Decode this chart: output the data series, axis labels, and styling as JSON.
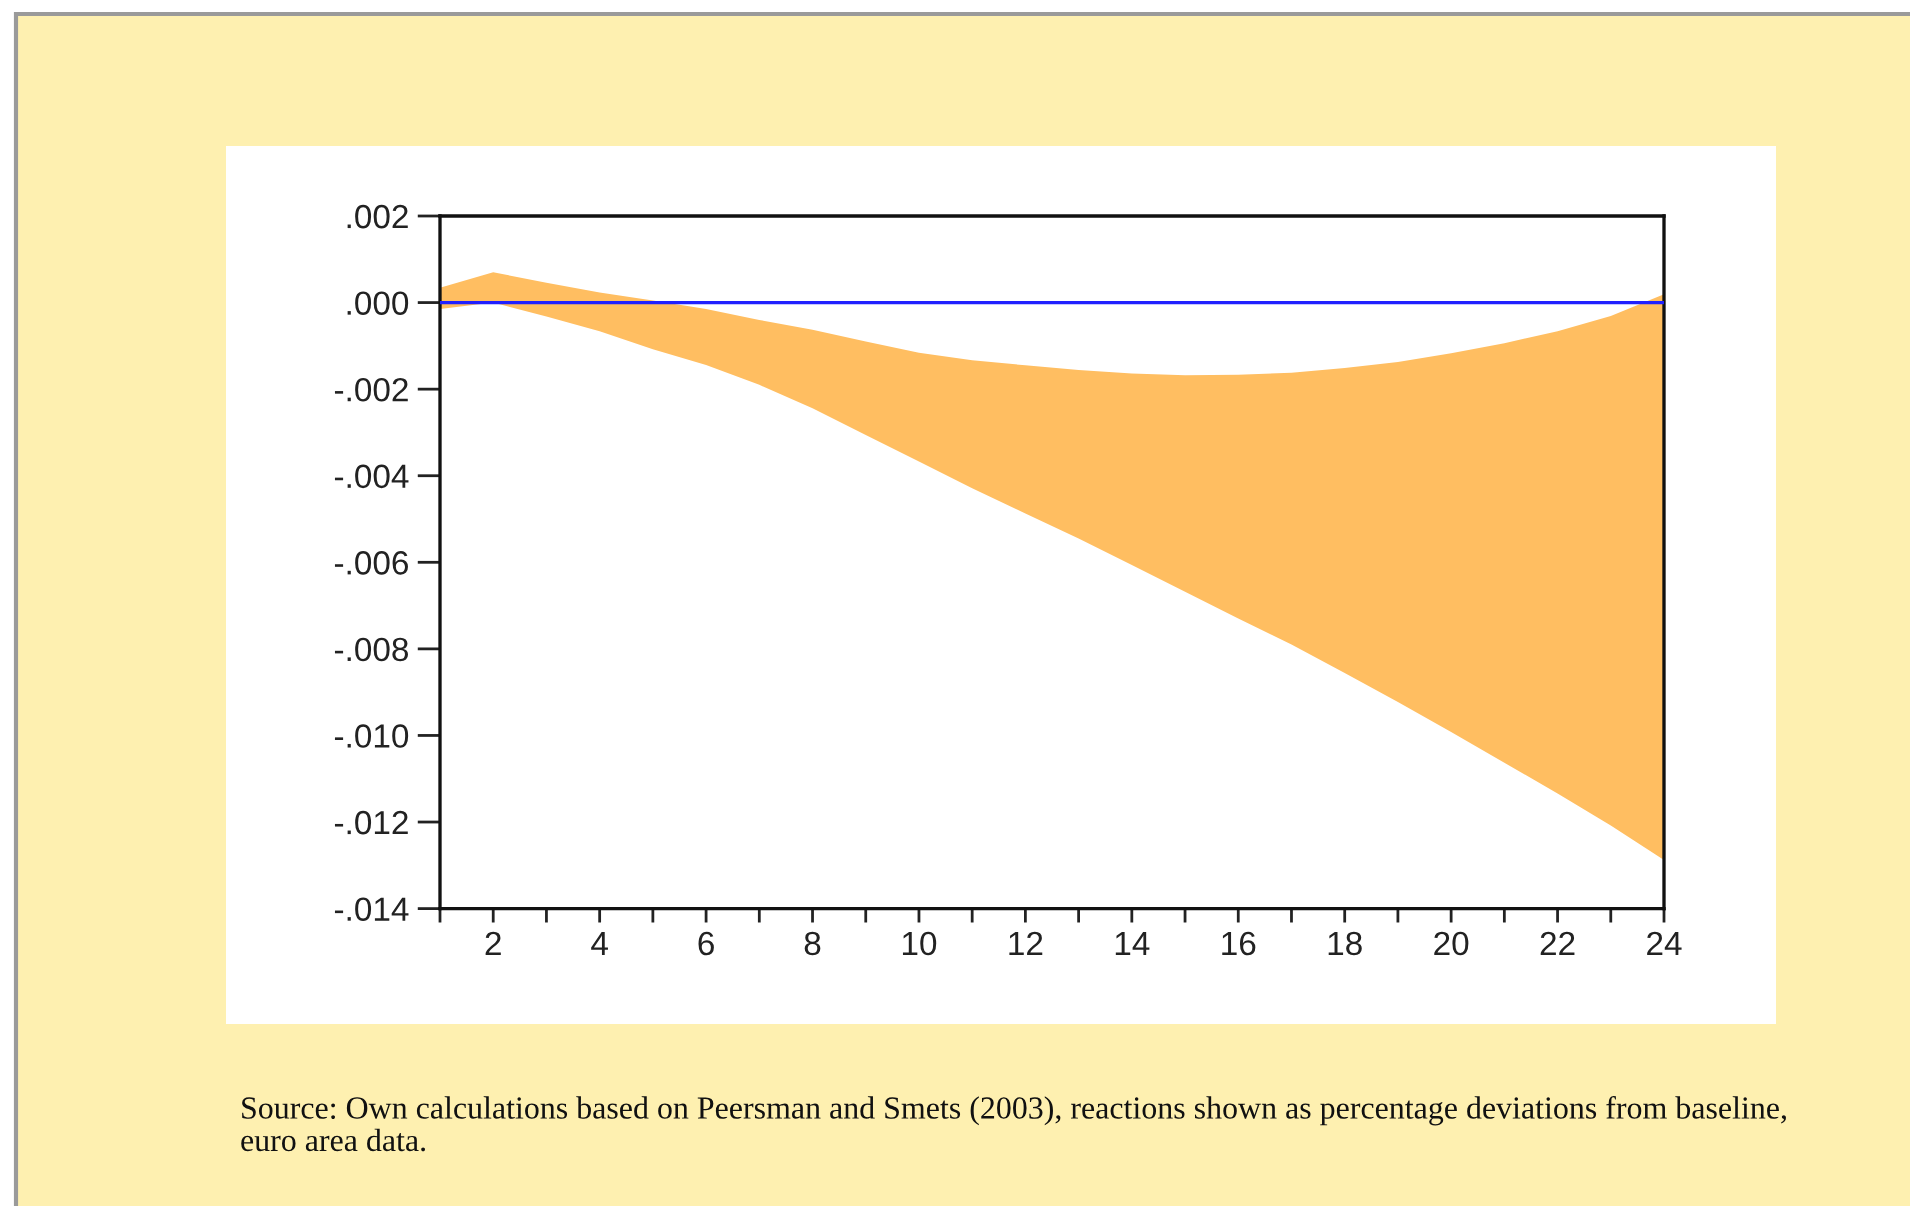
{
  "chart_data": {
    "type": "area",
    "x": [
      1,
      2,
      3,
      4,
      5,
      6,
      7,
      8,
      9,
      10,
      11,
      12,
      13,
      14,
      15,
      16,
      17,
      18,
      19,
      20,
      21,
      22,
      23,
      24
    ],
    "xlim": [
      1,
      24
    ],
    "xticks": [
      {
        "value": 1,
        "label": null
      },
      2,
      {
        "value": 3,
        "label": null
      },
      4,
      {
        "value": 5,
        "label": null
      },
      6,
      {
        "value": 7,
        "label": null
      },
      8,
      {
        "value": 9,
        "label": null
      },
      10,
      {
        "value": 11,
        "label": null
      },
      12,
      {
        "value": 13,
        "label": null
      },
      14,
      {
        "value": 15,
        "label": null
      },
      16,
      {
        "value": 17,
        "label": null
      },
      18,
      {
        "value": 19,
        "label": null
      },
      20,
      {
        "value": 21,
        "label": null
      },
      22,
      {
        "value": 23,
        "label": null
      },
      24
    ],
    "ylim": [
      -0.014,
      0.002
    ],
    "yticks": [
      {
        "value": 0.002,
        "label": ".002"
      },
      {
        "value": 0,
        "label": ".000"
      },
      {
        "value": -0.002,
        "label": "-.002"
      },
      {
        "value": -0.004,
        "label": "-.004"
      },
      {
        "value": -0.006,
        "label": "-.006"
      },
      {
        "value": -0.008,
        "label": "-.008"
      },
      {
        "value": -0.01,
        "label": "-.010"
      },
      {
        "value": -0.012,
        "label": "-.012"
      },
      {
        "value": -0.014,
        "label": "-.014"
      }
    ],
    "series": [
      {
        "color": "#ffbe61",
        "values": [
          null,
          null,
          null,
          null,
          null,
          null,
          null,
          null,
          null,
          null,
          null,
          null,
          null,
          null,
          null,
          null,
          null,
          null,
          null,
          null,
          null,
          null,
          null,
          null
        ],
        "upper": [
          0.00034,
          0.0007,
          0.00046,
          0.00023,
          5e-05,
          -0.00015,
          -0.0004,
          -0.00063,
          -0.0009,
          -0.00116,
          -0.00133,
          -0.00145,
          -0.00156,
          -0.00164,
          -0.00168,
          -0.00167,
          -0.00162,
          -0.00151,
          -0.00137,
          -0.00117,
          -0.00094,
          -0.00066,
          -0.00031,
          0.00019
        ],
        "lower": [
          -0.00015,
          0.0,
          -0.00032,
          -0.00066,
          -0.00108,
          -0.00144,
          -0.0019,
          -0.00244,
          -0.00306,
          -0.00367,
          -0.00429,
          -0.00487,
          -0.00545,
          -0.00606,
          -0.00668,
          -0.0073,
          -0.0079,
          -0.00856,
          -0.00923,
          -0.00992,
          -0.01063,
          -0.01134,
          -0.01208,
          -0.01288
        ]
      }
    ],
    "ref_lines": [
      {
        "axis": "y",
        "value": 0,
        "color": "#2020ff"
      }
    ],
    "annotations": [
      "Source: Own calculations based on Peersman and Smets (2003), reactions shown as percentage deviations from baseline,\neuro area data."
    ],
    "grid": false,
    "legend": false
  }
}
